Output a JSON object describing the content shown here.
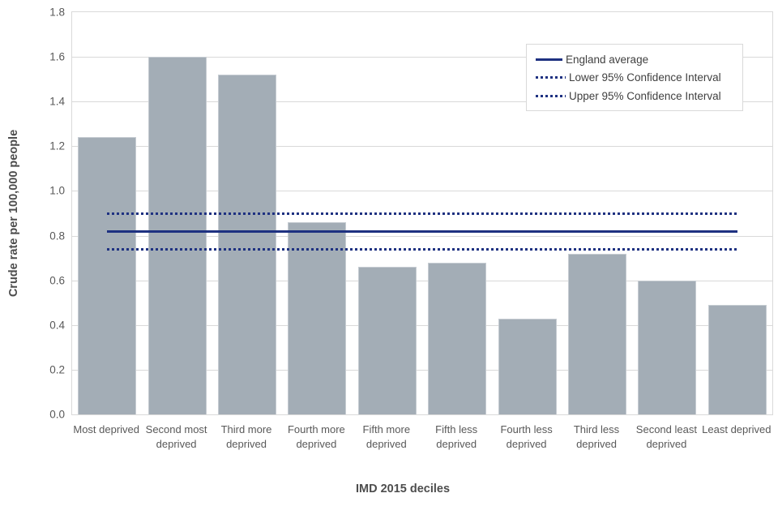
{
  "chart_data": {
    "type": "bar",
    "xlabel": "IMD 2015 deciles",
    "ylabel": "Crude rate per 100,000 people",
    "categories": [
      "Most deprived",
      "Second most deprived",
      "Third more deprived",
      "Fourth more deprived",
      "Fifth more deprived",
      "Fifth less deprived",
      "Fourth less deprived",
      "Third less deprived",
      "Second least deprived",
      "Least deprived"
    ],
    "values": [
      1.24,
      1.6,
      1.52,
      0.86,
      0.66,
      0.68,
      0.43,
      0.72,
      0.6,
      0.49
    ],
    "ylim": [
      0,
      1.8
    ],
    "ytick_labels": [
      "0.0",
      "0.2",
      "0.4",
      "0.6",
      "0.8",
      "1.0",
      "1.2",
      "1.4",
      "1.6",
      "1.8"
    ],
    "grid": "horizontal",
    "legend_position": "top-right",
    "reference_lines": [
      {
        "name": "England average",
        "value": 0.82,
        "style": "solid"
      },
      {
        "name": "Lower 95% Confidence Interval",
        "value": 0.74,
        "style": "dotted"
      },
      {
        "name": "Upper 95% Confidence Interval",
        "value": 0.9,
        "style": "dotted"
      }
    ]
  },
  "colors": {
    "bar": "#a3adb6",
    "line": "#1e3181",
    "grid": "#d9d9d9",
    "tick_text": "#595959",
    "axis_title_text": "#4d4d4d"
  }
}
